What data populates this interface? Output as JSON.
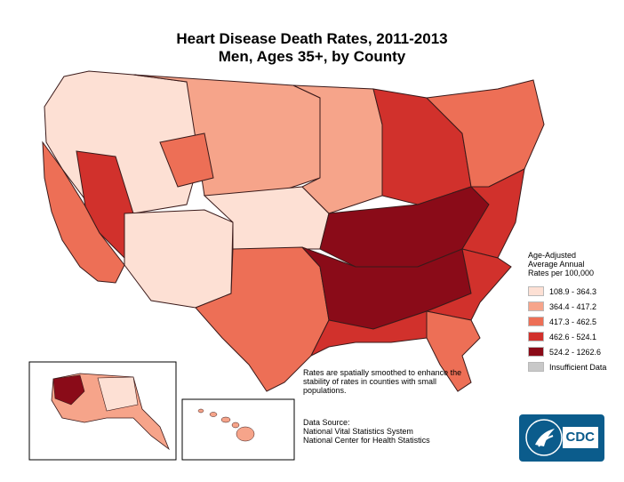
{
  "title": {
    "line1": "Heart Disease Death Rates, 2011-2013",
    "line2": "Men, Ages 35+, by County"
  },
  "legend": {
    "title_lines": [
      "Age-Adjusted",
      "Average Annual",
      "Rates per 100,000"
    ],
    "items": [
      {
        "label": "108.9 - 364.3",
        "color": "#fde0d4"
      },
      {
        "label": "364.4 - 417.2",
        "color": "#f6a48a"
      },
      {
        "label": "417.3 - 462.5",
        "color": "#ed6f56"
      },
      {
        "label": "462.6 - 524.1",
        "color": "#d1312c"
      },
      {
        "label": "524.2 - 1262.6",
        "color": "#8a0b18"
      },
      {
        "label": "Insufficient Data",
        "color": "#c8c8c8"
      }
    ]
  },
  "note": {
    "smoothing": "Rates are spatially smoothed to enhance the stability of rates in counties with small populations.",
    "source_heading": "Data Source:",
    "sources": [
      "National Vital Statistics System",
      "National Center for Health Statistics"
    ]
  },
  "logo": {
    "text": "CDC"
  },
  "colors": {
    "border": "#3a1a1a",
    "background": "#ffffff"
  }
}
